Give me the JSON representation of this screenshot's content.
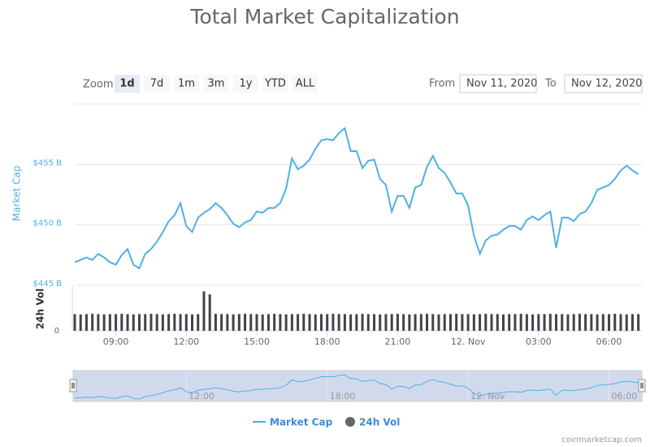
{
  "chart_data": {
    "type": "stock",
    "title": "Total Market Capitalization",
    "range_selector": {
      "label": "Zoom",
      "buttons": [
        "1d",
        "7d",
        "1m",
        "3m",
        "1y",
        "YTD",
        "ALL"
      ],
      "selected": "1d",
      "from_label": "From",
      "from": "Nov 11, 2020",
      "to_label": "To",
      "to": "Nov 12, 2020"
    },
    "y_axis_label": "Market Cap",
    "y2_axis_label": "24h Vol",
    "x": [
      7.25,
      7.5,
      7.75,
      8,
      8.25,
      8.5,
      8.75,
      9,
      9.25,
      9.5,
      9.75,
      10,
      10.25,
      10.5,
      10.75,
      11,
      11.25,
      11.5,
      11.75,
      12,
      12.25,
      12.5,
      12.75,
      13,
      13.25,
      13.5,
      13.75,
      14,
      14.25,
      14.5,
      14.75,
      15,
      15.25,
      15.5,
      15.75,
      16,
      16.25,
      16.5,
      16.75,
      17,
      17.25,
      17.5,
      17.75,
      18,
      18.25,
      18.5,
      18.75,
      19,
      19.25,
      19.5,
      19.75,
      20,
      20.25,
      20.5,
      20.75,
      21,
      21.25,
      21.5,
      21.75,
      22,
      22.25,
      22.5,
      22.75,
      23,
      23.25,
      23.5,
      23.75,
      24,
      24.25,
      24.5,
      24.75,
      25,
      25.25,
      25.5,
      25.75,
      26,
      26.25,
      26.5,
      26.75,
      27,
      27.25,
      27.5,
      27.75,
      28,
      28.25,
      28.5,
      28.75,
      29,
      29.25,
      29.5,
      29.75,
      30,
      30.25,
      30.5,
      30.75,
      31,
      31.25
    ],
    "series": [
      {
        "name": "Market Cap",
        "color": "#4fb0e3",
        "values": [
          446.9,
          447.1,
          447.3,
          447.1,
          447.6,
          447.3,
          446.9,
          446.7,
          447.5,
          448.0,
          446.7,
          446.4,
          447.6,
          448.0,
          448.6,
          449.4,
          450.3,
          450.8,
          451.8,
          449.9,
          449.4,
          450.6,
          451.0,
          451.3,
          451.8,
          451.4,
          450.8,
          450.1,
          449.8,
          450.2,
          450.4,
          451.1,
          451.0,
          451.4,
          451.4,
          451.8,
          453.0,
          455.5,
          454.6,
          454.9,
          455.4,
          456.3,
          457.0,
          457.1,
          457.0,
          457.6,
          458.0,
          456.1,
          456.1,
          454.7,
          455.3,
          455.4,
          453.8,
          453.3,
          451.1,
          452.4,
          452.4,
          451.4,
          453.1,
          453.3,
          454.8,
          455.7,
          454.7,
          454.3,
          453.5,
          452.6,
          452.6,
          451.6,
          449.1,
          447.6,
          448.7,
          449.1,
          449.2,
          449.6,
          449.9,
          449.9,
          449.6,
          450.4,
          450.7,
          450.4,
          450.8,
          451.1,
          448.1,
          450.6,
          450.6,
          450.3,
          450.9,
          451.1,
          451.8,
          452.9,
          453.1,
          453.3,
          453.8,
          454.5,
          454.9,
          454.5,
          454.2
        ]
      },
      {
        "name": "24h Vol",
        "color": "#434348",
        "axis": "y2",
        "values": [
          55,
          54,
          55,
          56,
          55,
          54,
          55,
          55,
          56,
          55,
          54,
          55,
          55,
          56,
          55,
          54,
          55,
          56,
          55,
          55,
          54,
          55,
          130,
          120,
          56,
          55,
          55,
          54,
          55,
          56,
          55,
          55,
          54,
          55,
          56,
          55,
          54,
          55,
          55,
          56,
          55,
          54,
          55,
          55,
          56,
          55,
          55,
          54,
          55,
          56,
          55,
          55,
          54,
          55,
          55,
          56,
          55,
          54,
          55,
          55,
          56,
          55,
          54,
          55,
          55,
          56,
          55,
          55,
          54,
          55,
          56,
          55,
          55,
          54,
          55,
          55,
          56,
          55,
          54,
          55,
          55,
          56,
          55,
          55,
          54,
          55,
          56,
          55,
          55,
          54,
          55,
          55,
          56,
          55,
          54,
          55,
          55
        ]
      }
    ],
    "xlim": [
      7.25,
      31.4
    ],
    "xticks": [
      {
        "value": 9,
        "label": "09:00"
      },
      {
        "value": 12,
        "label": "12:00"
      },
      {
        "value": 15,
        "label": "15:00"
      },
      {
        "value": 18,
        "label": "18:00"
      },
      {
        "value": 21,
        "label": "21:00"
      },
      {
        "value": 24,
        "label": "12. Nov"
      },
      {
        "value": 27,
        "label": "03:00"
      },
      {
        "value": 30,
        "label": "06:00"
      }
    ],
    "ylim": [
      445,
      460
    ],
    "yticks": [
      {
        "value": 445,
        "label": "$445 B"
      },
      {
        "value": 450,
        "label": "$450 B"
      },
      {
        "value": 455,
        "label": "$455 B"
      }
    ],
    "y2lim": [
      0,
      150
    ],
    "y2ticks": [
      0
    ],
    "grid": true,
    "navigator": {
      "xticks": [
        {
          "value": 12,
          "label": "12:00"
        },
        {
          "value": 18,
          "label": "18:00"
        },
        {
          "value": 24,
          "label": "12. Nov"
        },
        {
          "value": 30,
          "label": "06:00"
        }
      ]
    },
    "legend": "bottom",
    "credit": "coinmarketcap.com"
  }
}
